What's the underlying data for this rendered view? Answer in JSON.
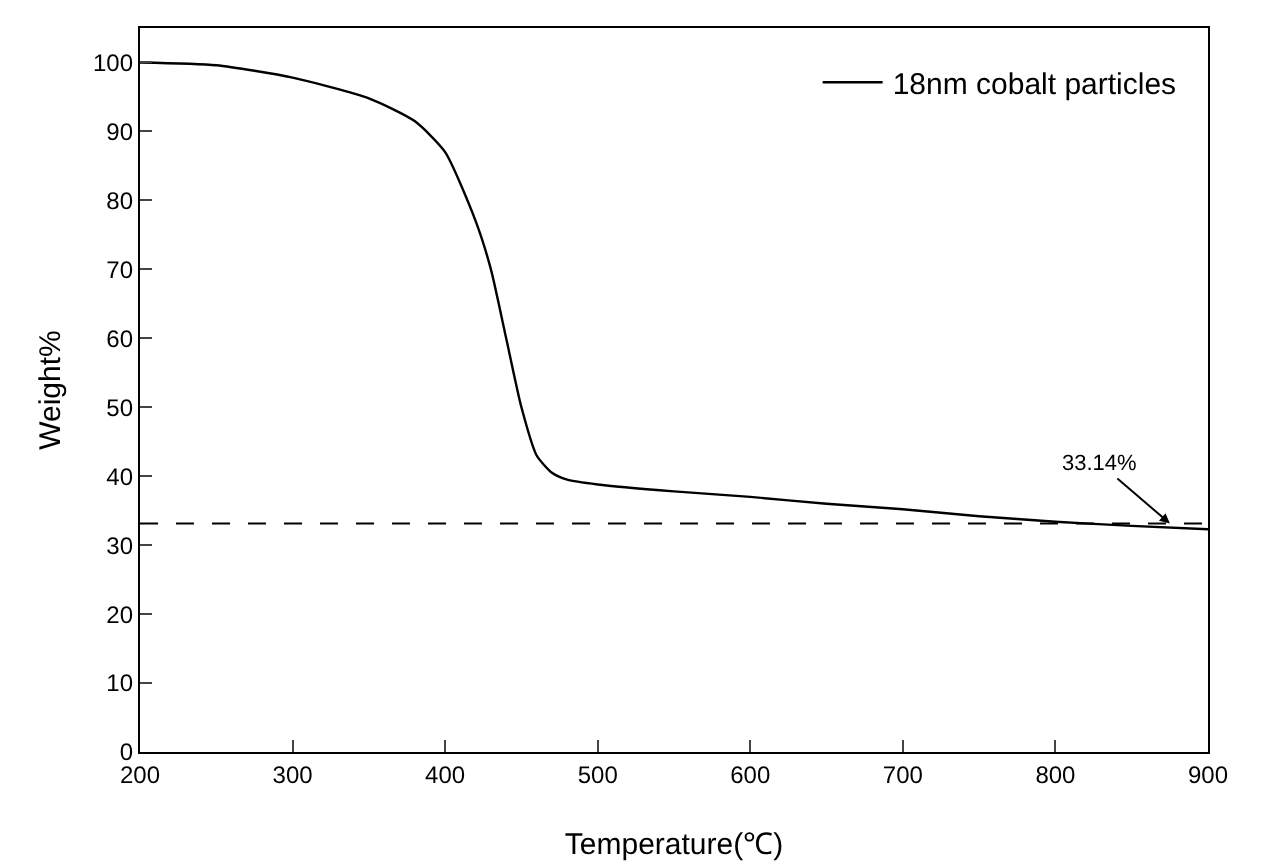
{
  "chart_data": {
    "type": "line",
    "xlabel": "Temperature(℃)",
    "ylabel": "Weight%",
    "x": [
      200,
      250,
      300,
      350,
      380,
      400,
      420,
      430,
      440,
      450,
      460,
      470,
      480,
      500,
      550,
      600,
      650,
      700,
      750,
      800,
      850,
      900
    ],
    "series": [
      {
        "name": "18nm cobalt particles",
        "color": "#000000",
        "values": [
          100,
          99.6,
          97.8,
          94.8,
          91.5,
          87,
          77,
          70,
          60,
          50,
          43,
          40.5,
          39.5,
          38.8,
          37.8,
          37,
          36,
          35.2,
          34.2,
          33.4,
          32.8,
          32.3
        ]
      }
    ],
    "xlim": [
      200,
      900
    ],
    "xticks": [
      200,
      300,
      400,
      500,
      600,
      700,
      800,
      900
    ],
    "ylim": [
      0,
      105
    ],
    "yticks": [
      0,
      10,
      20,
      30,
      40,
      50,
      60,
      70,
      80,
      90,
      100
    ],
    "ref_lines": [
      {
        "axis": "y",
        "value": 33.14,
        "color": "#000000",
        "line_style": "dashed"
      }
    ],
    "annotations": [
      {
        "text": "33.14%",
        "x": 875,
        "y": 33.14
      }
    ],
    "grid": false,
    "legend": "top right",
    "marker": "none",
    "line_style": "solid"
  }
}
